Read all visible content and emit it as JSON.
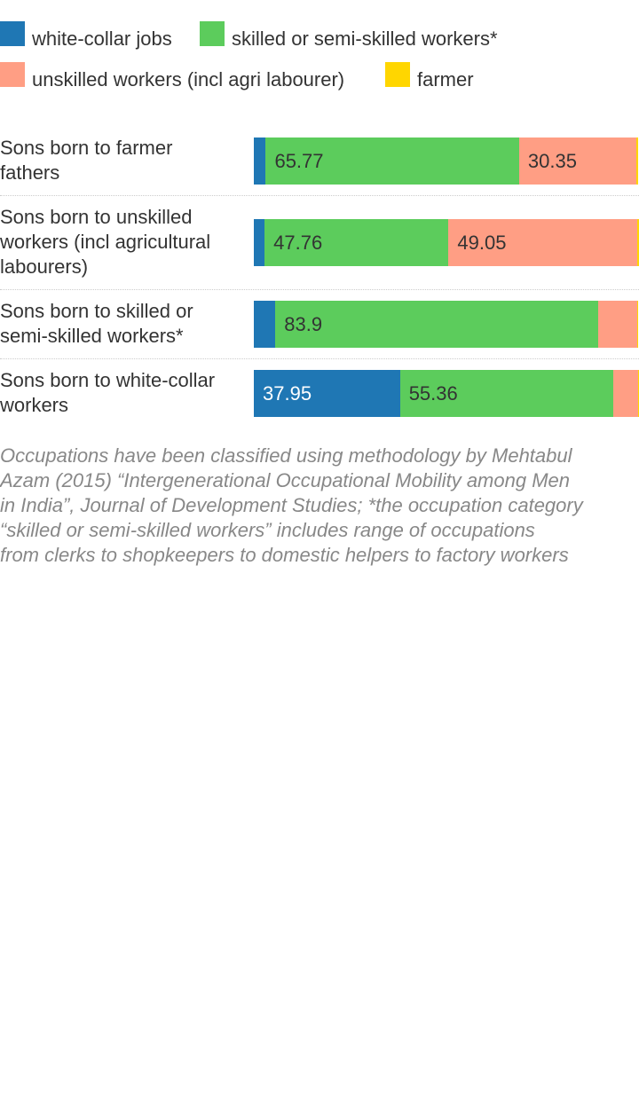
{
  "chart_data": {
    "type": "bar",
    "orientation": "horizontal",
    "stacked": true,
    "categories": [
      "Sons born to farmer fathers",
      "Sons born to unskilled workers (incl agricultural labourers)",
      "Sons born to skilled or semi-skilled workers*",
      "Sons born to white-collar workers"
    ],
    "series": [
      {
        "name": "white-collar jobs",
        "color": "#1f77b4",
        "values": [
          3.1,
          2.8,
          5.6,
          37.95
        ]
      },
      {
        "name": "skilled or semi-skilled workers*",
        "color": "#5ccc5c",
        "values": [
          65.77,
          47.76,
          83.9,
          55.36
        ]
      },
      {
        "name": "unskilled workers (incl agri labourer)",
        "color": "#ff9e84",
        "values": [
          30.35,
          49.05,
          10.0,
          6.5
        ]
      },
      {
        "name": "farmer",
        "color": "#ffd600",
        "values": [
          0.5,
          0.3,
          0.2,
          0.1
        ]
      }
    ],
    "data_labels": [
      [
        null,
        "65.77",
        "30.35",
        null
      ],
      [
        null,
        "47.76",
        "49.05",
        null
      ],
      [
        null,
        "83.9",
        null,
        null
      ],
      [
        "37.95",
        "55.36",
        null,
        null
      ]
    ],
    "xlim": [
      0,
      100
    ],
    "grid": false,
    "legend_position": "top",
    "title": "",
    "xlabel": "",
    "ylabel": ""
  },
  "note": "Occupations have been classified using methodology by Mehtabul\nAzam (2015) “Intergenerational Occupational Mobility among Men\nin India”, Journal of Development Studies; *the occupation category\n“skilled or semi-skilled workers” includes range of occupations\nfrom clerks to shopkeepers to domestic helpers to factory workers"
}
